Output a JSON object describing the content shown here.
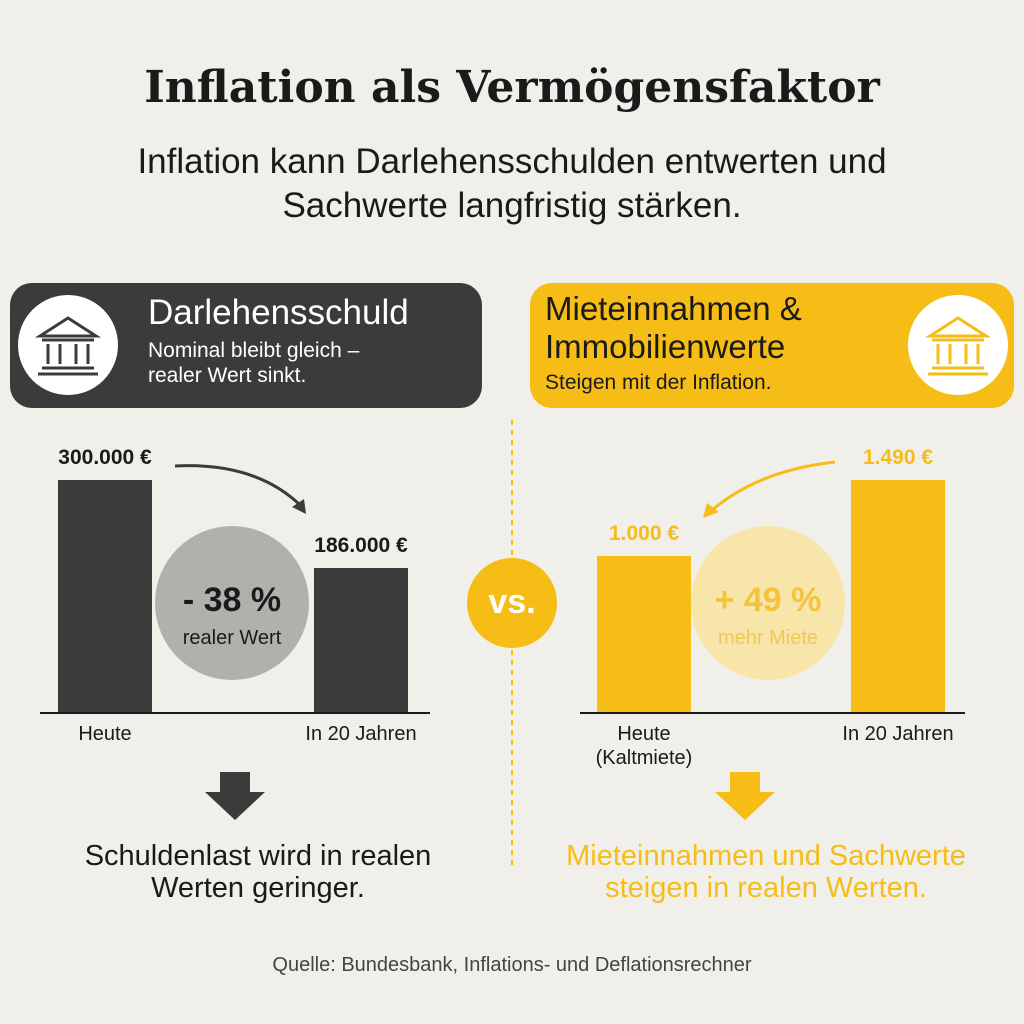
{
  "title": "Inflation als Vermögensfaktor",
  "subtitle": [
    "Inflation kann Darlehensschulden entwerten und",
    "Sachwerte langfristig stärken."
  ],
  "vs": "vs.",
  "source": "Quelle: Bundesbank, Inflations- und Deflationsrechner",
  "chart_data": [
    {
      "type": "bar",
      "title": [
        "Darlehensschuld"
      ],
      "subtitle": [
        "Nominal bleibt gleich –",
        "realer Wert sinkt."
      ],
      "categories": [
        "Heute",
        "In 20 Jahren"
      ],
      "values": [
        300000,
        186000
      ],
      "value_labels": [
        "300.000 €",
        "186.000 €"
      ],
      "color": "#3b3b3b",
      "annotation": {
        "value": "- 38 %",
        "label": "realer Wert"
      },
      "conclusion": [
        "Schuldenlast wird in realen",
        "Werten geringer."
      ]
    },
    {
      "type": "bar",
      "title": [
        "Mieteinnahmen &",
        "Immobilienwerte"
      ],
      "subtitle": [
        "Steigen mit der Inflation."
      ],
      "categories": [
        "Heute (Kaltmiete)",
        "In 20 Jahren"
      ],
      "values": [
        1000,
        1490
      ],
      "value_labels": [
        "1.000 €",
        "1.490 €"
      ],
      "color": "#f6bd16",
      "annotation": {
        "value": "+ 49 %",
        "label": "mehr Miete"
      },
      "conclusion": [
        "Mieteinnahmen und Sachwerte",
        "steigen in realen Werten."
      ]
    }
  ]
}
